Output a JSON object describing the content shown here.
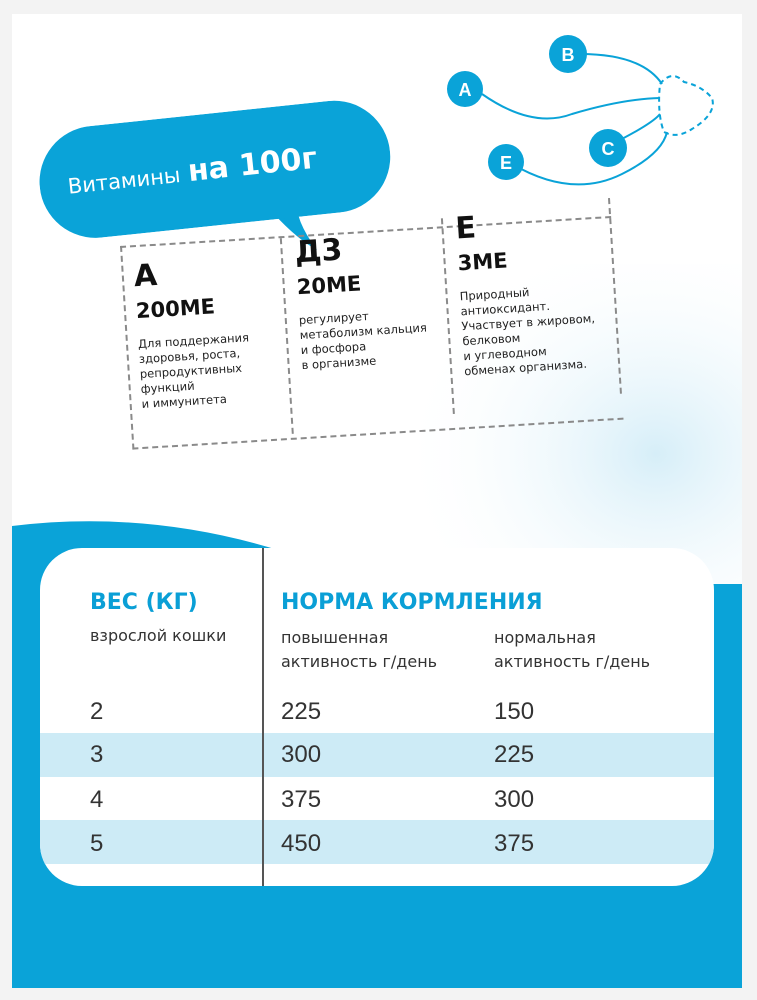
{
  "colors": {
    "brand_blue": "#0aa3d8",
    "band": "#cdebf6",
    "text_dark": "#111111"
  },
  "bubble": {
    "word1": "Витамины",
    "word2": "на 100г"
  },
  "molecule": {
    "nodes": [
      "B",
      "A",
      "C",
      "E"
    ],
    "icon": "heart-molecule-icon"
  },
  "vitamins": [
    {
      "letter": "А",
      "dose": "200МЕ",
      "desc": [
        "Для поддержания",
        "здоровья, роста,",
        "репродуктивных",
        "функций",
        "и иммунитета"
      ]
    },
    {
      "letter": "Д3",
      "dose": "20МЕ",
      "desc": [
        "регулирует",
        "метаболизм кальция",
        "и фосфора",
        "в организме"
      ]
    },
    {
      "letter": "Е",
      "dose": "3МЕ",
      "desc": [
        "Природный",
        "антиоксидант.",
        "Участвует в жировом,",
        "белковом",
        "и углеводном",
        "обменах организма."
      ]
    }
  ],
  "table": {
    "weight_header": "ВЕС (КГ)",
    "weight_sub": "взрослой кошки",
    "norm_header": "НОРМА КОРМЛЕНИЯ",
    "col_high": [
      "повышенная",
      "активность г/день"
    ],
    "col_normal": [
      "нормальная",
      "активность г/день"
    ],
    "rows": [
      {
        "weight": "2",
        "high": "225",
        "normal": "150"
      },
      {
        "weight": "3",
        "high": "300",
        "normal": "225"
      },
      {
        "weight": "4",
        "high": "375",
        "normal": "300"
      },
      {
        "weight": "5",
        "high": "450",
        "normal": "375"
      }
    ]
  }
}
